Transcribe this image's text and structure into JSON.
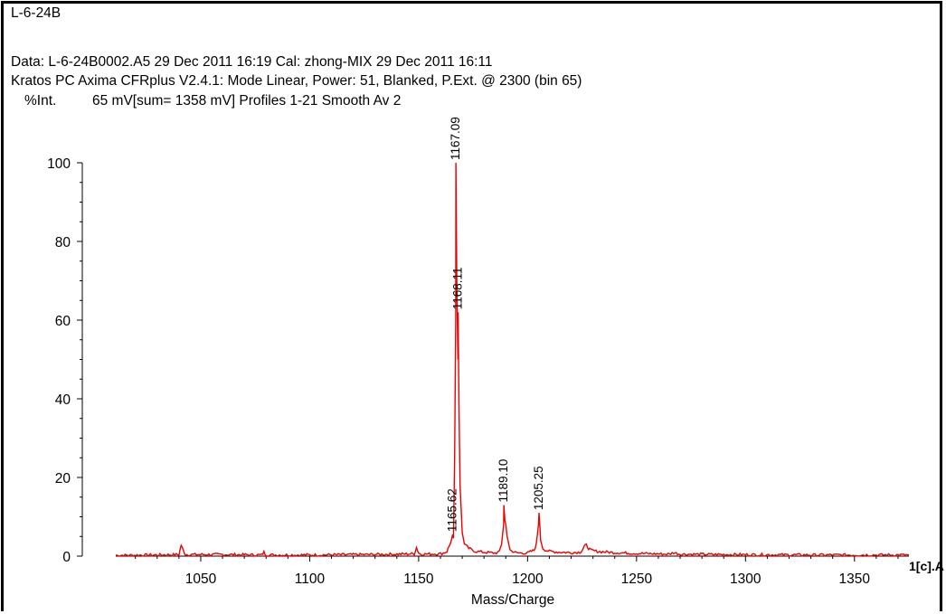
{
  "header": {
    "sample_title": "L-6-24B",
    "data_line": "Data: L-6-24B0002.A5 29 Dec 2011 16:19 Cal: zhong-MIX 29 Dec 2011 16:11",
    "instrument_line": "Kratos PC Axima CFRplus V2.4.1: Mode Linear, Power: 51, Blanked, P.Ext. @ 2300 (bin 65)",
    "acquisition_line": "65 mV[sum= 1358 mV]  Profiles 1-21 Smooth Av 2"
  },
  "colors": {
    "spectrum": "#ee0000",
    "axis": "#000000",
    "text": "#000000"
  },
  "chart_data": {
    "type": "line",
    "title": "",
    "xlabel": "Mass/Charge",
    "ylabel": "%Int.",
    "xlim": [
      1011,
      1375
    ],
    "ylim": [
      0,
      100
    ],
    "x_ticks": [
      1050,
      1100,
      1150,
      1200,
      1250,
      1300,
      1350
    ],
    "y_ticks": [
      0,
      20,
      40,
      60,
      80,
      100
    ],
    "grid": false,
    "corner_label": "1[c].A",
    "peaks": [
      {
        "mz": 1165.62,
        "intensity": 5.5,
        "label": "1165.62"
      },
      {
        "mz": 1167.09,
        "intensity": 100,
        "label": "1167.09"
      },
      {
        "mz": 1168.11,
        "intensity": 62,
        "label": "1168.11"
      },
      {
        "mz": 1189.1,
        "intensity": 13,
        "label": "1189.10"
      },
      {
        "mz": 1205.25,
        "intensity": 11,
        "label": "1205.25"
      }
    ],
    "spectrum": {
      "name": "",
      "x": [
        1011,
        1030,
        1040,
        1041,
        1042,
        1043,
        1060,
        1078,
        1079,
        1080,
        1100,
        1125,
        1140,
        1148,
        1149,
        1150,
        1151,
        1160,
        1162,
        1163,
        1164,
        1165,
        1165.6,
        1166,
        1166.5,
        1167,
        1167.09,
        1167.5,
        1168,
        1168.11,
        1168.5,
        1169,
        1170,
        1171,
        1173,
        1176,
        1180,
        1185,
        1187,
        1188,
        1189,
        1189.1,
        1189.6,
        1190,
        1190.6,
        1191,
        1192,
        1195,
        1200,
        1203,
        1204,
        1205,
        1205.25,
        1205.7,
        1206,
        1207,
        1208,
        1210,
        1215,
        1220,
        1224,
        1225,
        1226,
        1227,
        1228,
        1229,
        1232,
        1240,
        1250,
        1265,
        1267,
        1270,
        1290,
        1310,
        1330,
        1350,
        1375
      ],
      "y": [
        0.2,
        0.3,
        0.4,
        2.8,
        1.4,
        0.4,
        0.4,
        0.3,
        1.0,
        0.3,
        0.3,
        0.4,
        0.5,
        0.6,
        2.2,
        0.8,
        0.5,
        0.6,
        0.9,
        1.2,
        2.5,
        4.0,
        5.5,
        4.5,
        25,
        60,
        100,
        70,
        50,
        62,
        38,
        18,
        6,
        3,
        2,
        1.2,
        1,
        0.8,
        1.0,
        3,
        8,
        13,
        9,
        8,
        5,
        4,
        1.5,
        0.8,
        0.8,
        1.5,
        3,
        8,
        11,
        7,
        4,
        2,
        1.6,
        1.2,
        1.0,
        0.9,
        1.0,
        1.5,
        2.5,
        2.8,
        2.0,
        1.5,
        1.2,
        0.9,
        0.7,
        0.5,
        0.9,
        0.5,
        0.4,
        0.35,
        0.3,
        0.3,
        0.3
      ]
    }
  }
}
